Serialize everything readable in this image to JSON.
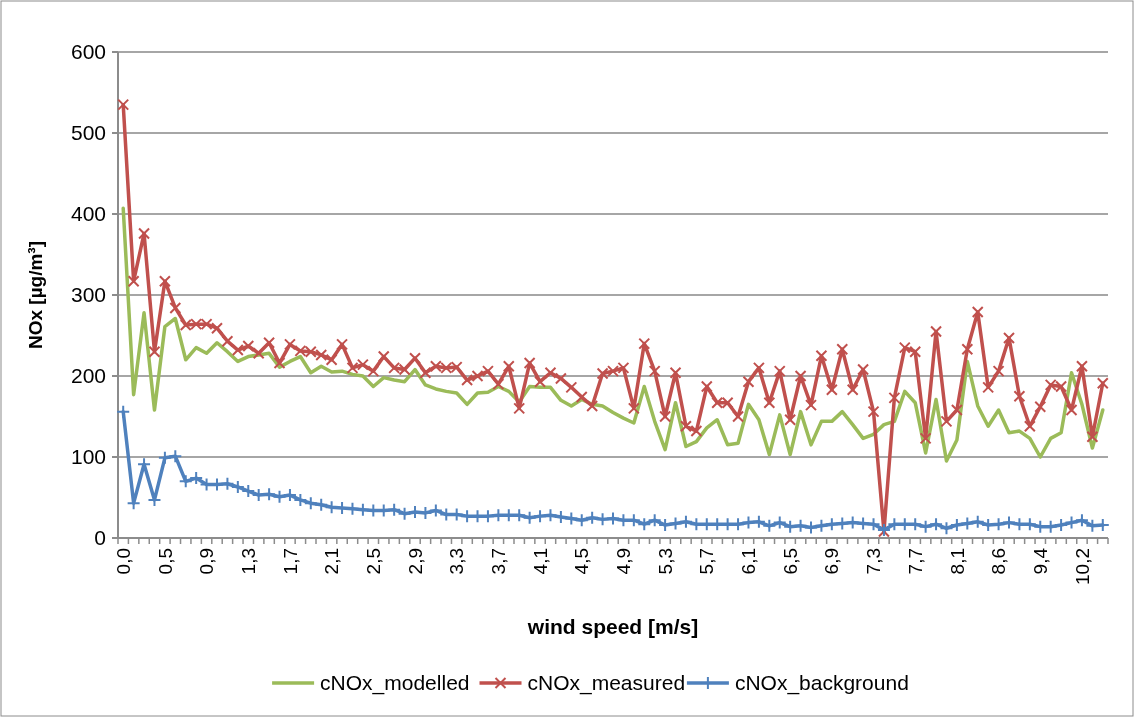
{
  "chart_data": {
    "type": "line",
    "xlabel": "wind speed [m/s]",
    "ylabel": "NOx [µg/m³]",
    "categories": [
      "0,0",
      null,
      null,
      null,
      "0,5",
      null,
      null,
      null,
      "0,9",
      null,
      null,
      null,
      "1,3",
      null,
      null,
      null,
      "1,7",
      null,
      null,
      null,
      "2,1",
      null,
      null,
      null,
      "2,5",
      null,
      null,
      null,
      "2,9",
      null,
      null,
      null,
      "3,3",
      null,
      null,
      null,
      "3,7",
      null,
      null,
      null,
      "4,1",
      null,
      null,
      null,
      "4,5",
      null,
      null,
      null,
      "4,9",
      null,
      null,
      null,
      "5,3",
      null,
      null,
      null,
      "5,7",
      null,
      null,
      null,
      "6,1",
      null,
      null,
      null,
      "6,5",
      null,
      null,
      null,
      "6,9",
      null,
      null,
      null,
      "7,3",
      null,
      null,
      null,
      "7,7",
      null,
      null,
      null,
      "8,1",
      null,
      null,
      null,
      "8,6",
      null,
      null,
      null,
      "9,4",
      null,
      null,
      null,
      "10,2",
      null,
      null
    ],
    "series": [
      {
        "name": "cNOx_modelled",
        "color": "#9bbb59",
        "marker": "none",
        "values": [
          407,
          177,
          278,
          158,
          261,
          271,
          220,
          235,
          228,
          241,
          230,
          218,
          224,
          226,
          228,
          211,
          218,
          224,
          204,
          212,
          205,
          206,
          202,
          200,
          187,
          198,
          195,
          193,
          208,
          189,
          184,
          181,
          179,
          165,
          179,
          180,
          187,
          181,
          168,
          187,
          186,
          186,
          170,
          163,
          171,
          165,
          163,
          155,
          148,
          142,
          187,
          144,
          109,
          167,
          113,
          119,
          136,
          146,
          115,
          117,
          165,
          146,
          103,
          152,
          103,
          156,
          115,
          144,
          144,
          156,
          140,
          123,
          128,
          140,
          144,
          181,
          167,
          105,
          171,
          95,
          121,
          218,
          163,
          138,
          158,
          130,
          132,
          123,
          100,
          123,
          130,
          204,
          165,
          111,
          158
        ]
      },
      {
        "name": "cNOx_measured",
        "color": "#c0504d",
        "marker": "cross",
        "values": [
          535,
          317,
          376,
          230,
          317,
          284,
          263,
          264,
          264,
          259,
          243,
          232,
          237,
          228,
          241,
          216,
          239,
          231,
          230,
          226,
          220,
          239,
          210,
          214,
          206,
          224,
          210,
          208,
          222,
          204,
          212,
          210,
          211,
          195,
          200,
          206,
          190,
          212,
          160,
          216,
          193,
          204,
          197,
          186,
          174,
          163,
          203,
          206,
          210,
          160,
          240,
          206,
          150,
          204,
          138,
          132,
          187,
          167,
          167,
          150,
          193,
          210,
          167,
          206,
          146,
          200,
          164,
          225,
          183,
          233,
          183,
          208,
          156,
          8,
          173,
          235,
          230,
          123,
          255,
          144,
          158,
          233,
          279,
          186,
          206,
          247,
          175,
          138,
          162,
          189,
          187,
          158,
          212,
          125,
          191
        ]
      },
      {
        "name": "cNOx_background",
        "color": "#4f81bd",
        "marker": "plus",
        "values": [
          156,
          43,
          91,
          47,
          99,
          101,
          70,
          74,
          66,
          66,
          67,
          63,
          58,
          53,
          54,
          51,
          53,
          47,
          43,
          41,
          38,
          37,
          36,
          35,
          34,
          34,
          35,
          30,
          32,
          31,
          34,
          29,
          29,
          27,
          27,
          27,
          28,
          28,
          28,
          25,
          27,
          28,
          26,
          24,
          22,
          25,
          23,
          24,
          22,
          22,
          17,
          22,
          16,
          18,
          20,
          17,
          17,
          17,
          17,
          17,
          19,
          20,
          15,
          19,
          14,
          15,
          13,
          15,
          17,
          18,
          19,
          18,
          17,
          10,
          17,
          17,
          17,
          14,
          17,
          12,
          16,
          18,
          20,
          16,
          17,
          19,
          17,
          17,
          14,
          14,
          16,
          19,
          22,
          15,
          16
        ]
      }
    ],
    "ylim": [
      0,
      600
    ],
    "yticks": [
      0,
      100,
      200,
      300,
      400,
      500,
      600
    ],
    "grid": "y",
    "legend": "bottom"
  }
}
